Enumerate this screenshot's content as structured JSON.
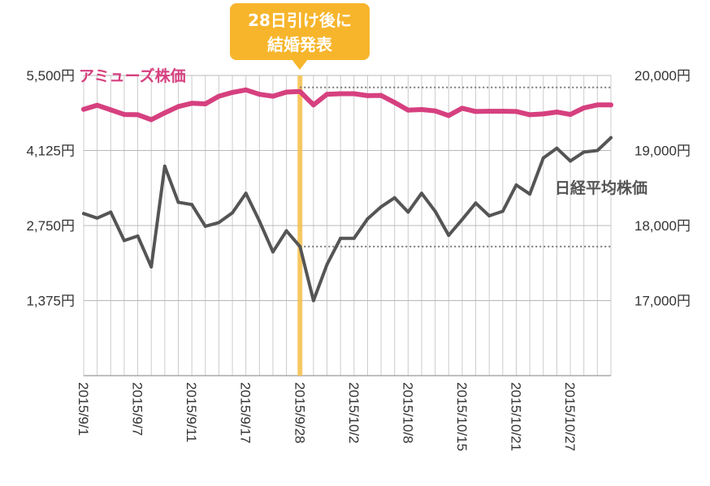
{
  "chart_data": {
    "type": "line",
    "x": [
      "2015/9/1",
      "2015/9/2",
      "2015/9/3",
      "2015/9/4",
      "2015/9/7",
      "2015/9/8",
      "2015/9/9",
      "2015/9/10",
      "2015/9/11",
      "2015/9/14",
      "2015/9/15",
      "2015/9/16",
      "2015/9/17",
      "2015/9/18",
      "2015/9/24",
      "2015/9/25",
      "2015/9/28",
      "2015/9/29",
      "2015/9/30",
      "2015/10/1",
      "2015/10/2",
      "2015/10/5",
      "2015/10/6",
      "2015/10/7",
      "2015/10/8",
      "2015/10/9",
      "2015/10/13",
      "2015/10/14",
      "2015/10/15",
      "2015/10/16",
      "2015/10/19",
      "2015/10/20",
      "2015/10/21",
      "2015/10/22",
      "2015/10/23",
      "2015/10/26",
      "2015/10/27",
      "2015/10/28",
      "2015/10/29",
      "2015/10/30"
    ],
    "xtick_labels": [
      "2015/9/1",
      "2015/9/7",
      "2015/9/11",
      "2015/9/17",
      "2015/9/28",
      "2015/10/2",
      "2015/10/8",
      "2015/10/15",
      "2015/10/21",
      "2015/10/27"
    ],
    "xtick_indices": [
      0,
      4,
      8,
      12,
      16,
      20,
      24,
      28,
      32,
      36
    ],
    "series": [
      {
        "name": "アミューズ株価",
        "axis": "left",
        "color": "#d6407f",
        "values": [
          4880,
          4955,
          4870,
          4785,
          4780,
          4690,
          4815,
          4930,
          4990,
          4980,
          5120,
          5190,
          5235,
          5155,
          5120,
          5195,
          5205,
          4960,
          5155,
          5165,
          5165,
          5130,
          5135,
          5005,
          4865,
          4875,
          4850,
          4765,
          4900,
          4840,
          4845,
          4845,
          4840,
          4780,
          4795,
          4830,
          4785,
          4905,
          4960,
          4960
        ]
      },
      {
        "name": "日経平均株価",
        "axis": "right",
        "color": "#555555",
        "values": [
          18160,
          18100,
          18180,
          17800,
          17860,
          17450,
          18790,
          18310,
          18280,
          17990,
          18040,
          18170,
          18430,
          18060,
          17650,
          17930,
          17720,
          17000,
          17480,
          17830,
          17830,
          18090,
          18250,
          18370,
          18180,
          18430,
          18190,
          17870,
          18080,
          18300,
          18130,
          18190,
          18540,
          18420,
          18900,
          19030,
          18860,
          18980,
          19000,
          19170
        ]
      }
    ],
    "ylim_left": [
      0,
      5500
    ],
    "ylim_right": [
      16000,
      20000
    ],
    "yticks_left": [
      "5,500円",
      "4,125円",
      "2,750円",
      "1,375円"
    ],
    "yticks_right": [
      "20,000円",
      "19,000円",
      "18,000円",
      "17,000円"
    ],
    "grid": true,
    "highlight_index": 16,
    "highlight_color": "#f7c04a",
    "reference_lines": [
      {
        "axis": "left",
        "value": 5280
      },
      {
        "axis": "right",
        "value": 17720
      }
    ],
    "annotation": {
      "line1": "28日引け後に",
      "line2": "結婚発表"
    }
  }
}
